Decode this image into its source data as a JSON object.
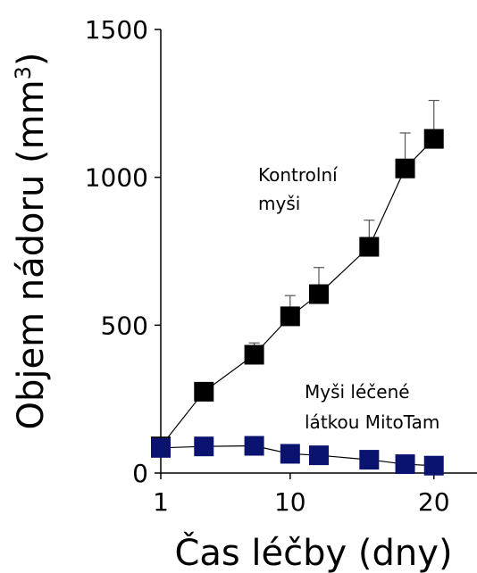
{
  "chart_data": {
    "type": "line",
    "title": "",
    "xlabel": "Čas léčby (dny)",
    "ylabel": "Objem nádoru (mm",
    "ylabel_sup": "3",
    "ylabel_close": ")",
    "xlim": [
      1,
      23
    ],
    "ylim": [
      0,
      1500
    ],
    "x_ticks": [
      {
        "value": 1,
        "label": "1"
      },
      {
        "value": 10,
        "label": "10"
      },
      {
        "value": 20,
        "label": "20"
      }
    ],
    "y_ticks": [
      {
        "value": 0,
        "label": "0"
      },
      {
        "value": 500,
        "label": "500"
      },
      {
        "value": 1000,
        "label": "1000"
      },
      {
        "value": 1500,
        "label": "1500"
      }
    ],
    "grid": false,
    "series": [
      {
        "name": "Kontrolní myši",
        "color": "#000000",
        "marker": "square",
        "x": [
          1,
          4,
          7.5,
          10,
          12,
          15.5,
          18,
          20
        ],
        "y": [
          90,
          275,
          400,
          530,
          605,
          765,
          1030,
          1130
        ],
        "error": [
          0,
          0,
          40,
          70,
          90,
          90,
          120,
          130
        ]
      },
      {
        "name": "Myši léčené látkou MitoTam",
        "color": "#0a1370",
        "marker": "square",
        "x": [
          1,
          4,
          7.5,
          10,
          12,
          15.5,
          18,
          20
        ],
        "y": [
          85,
          90,
          92,
          65,
          60,
          45,
          30,
          25
        ],
        "error": [
          0,
          0,
          0,
          0,
          0,
          0,
          0,
          0
        ]
      }
    ],
    "annotations": [
      {
        "lines": [
          "Kontrolní",
          "myši"
        ],
        "color": "#000000"
      },
      {
        "lines": [
          "Myši léčené",
          "látkou MitoTam"
        ],
        "color": "#000000"
      }
    ]
  }
}
